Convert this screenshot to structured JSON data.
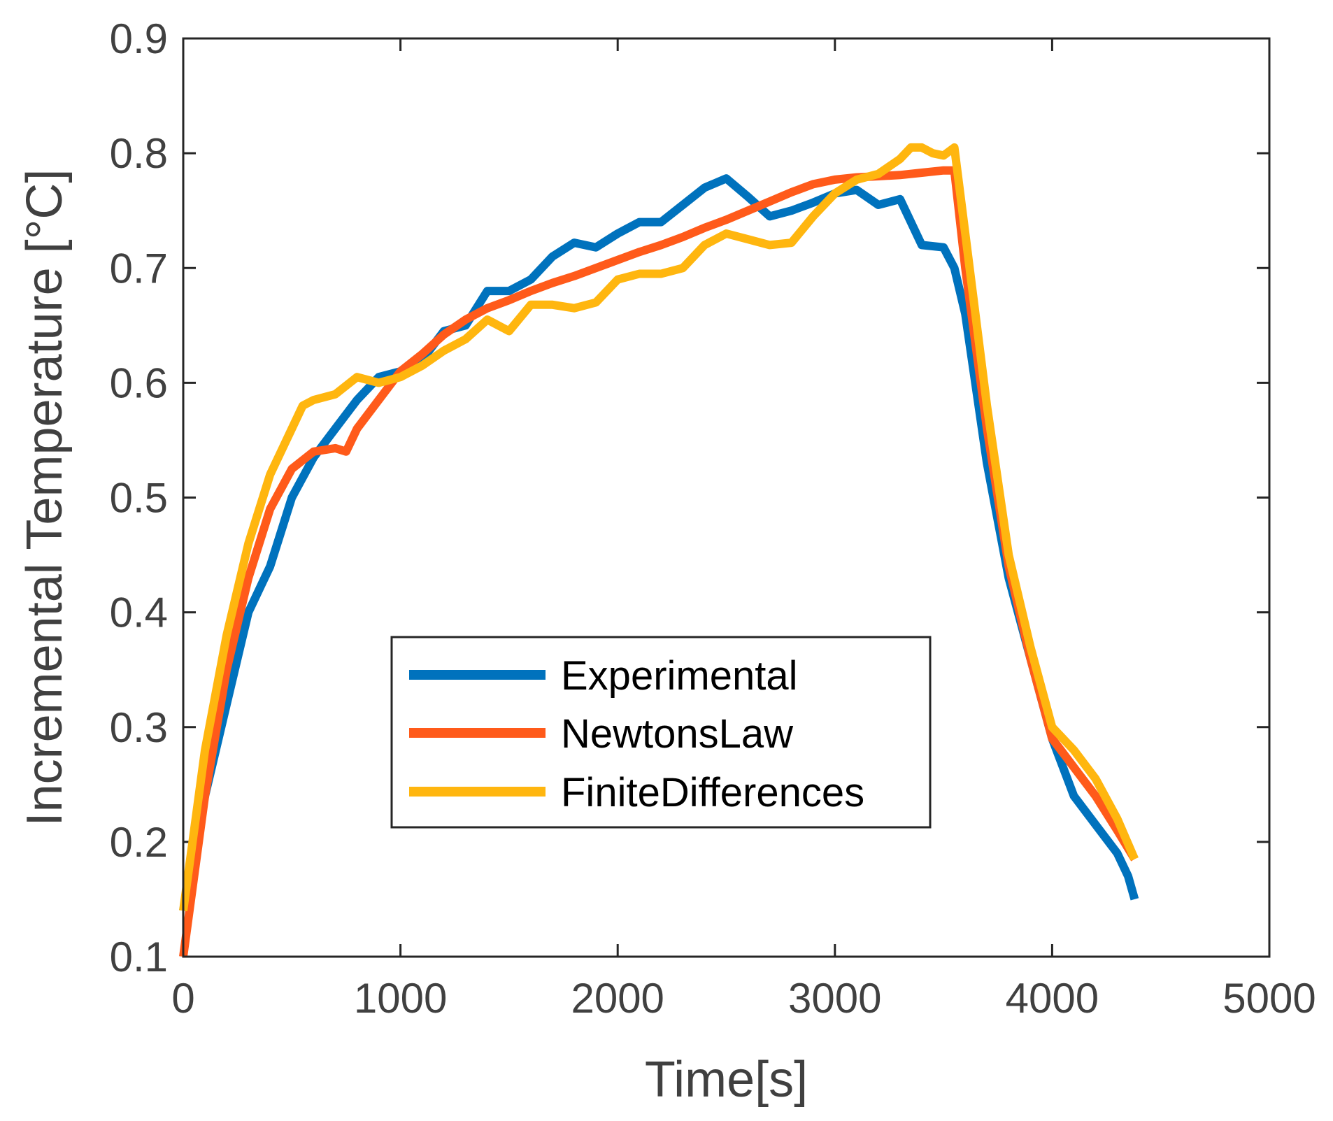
{
  "chart_data": {
    "type": "line",
    "title": "",
    "xlabel": "Time[s]",
    "ylabel": "Incremental Temperature [°C]",
    "xlim": [
      0,
      5000
    ],
    "ylim": [
      0.1,
      0.9
    ],
    "xticks": [
      0,
      1000,
      2000,
      3000,
      4000,
      5000
    ],
    "yticks": [
      0.1,
      0.2,
      0.3,
      0.4,
      0.5,
      0.6,
      0.7,
      0.8,
      0.9
    ],
    "xtick_labels": [
      "0",
      "1000",
      "2000",
      "3000",
      "4000",
      "5000"
    ],
    "ytick_labels": [
      "0.1",
      "0.2",
      "0.3",
      "0.4",
      "0.5",
      "0.6",
      "0.7",
      "0.8",
      "0.9"
    ],
    "grid": false,
    "legend_position": "center-bottom",
    "series": [
      {
        "name": "Experimental",
        "color": "#0072BD",
        "x": [
          0,
          100,
          200,
          300,
          400,
          500,
          600,
          700,
          800,
          900,
          1000,
          1100,
          1200,
          1300,
          1400,
          1500,
          1600,
          1700,
          1800,
          1900,
          2000,
          2100,
          2200,
          2300,
          2400,
          2500,
          2600,
          2700,
          2800,
          2900,
          3000,
          3100,
          3200,
          3300,
          3400,
          3500,
          3550,
          3600,
          3700,
          3800,
          3900,
          4000,
          4100,
          4200,
          4300,
          4350,
          4380
        ],
        "y": [
          0.14,
          0.24,
          0.32,
          0.4,
          0.44,
          0.5,
          0.535,
          0.56,
          0.585,
          0.605,
          0.61,
          0.62,
          0.645,
          0.65,
          0.68,
          0.68,
          0.69,
          0.71,
          0.722,
          0.718,
          0.73,
          0.74,
          0.74,
          0.755,
          0.77,
          0.778,
          0.762,
          0.745,
          0.75,
          0.757,
          0.765,
          0.768,
          0.755,
          0.76,
          0.72,
          0.718,
          0.7,
          0.66,
          0.53,
          0.43,
          0.36,
          0.29,
          0.24,
          0.215,
          0.19,
          0.17,
          0.15
        ]
      },
      {
        "name": "NewtonsLaw",
        "color": "#FF5A1A",
        "x": [
          0,
          100,
          200,
          300,
          400,
          500,
          600,
          700,
          750,
          800,
          900,
          1000,
          1100,
          1200,
          1300,
          1400,
          1500,
          1600,
          1700,
          1800,
          1900,
          2000,
          2100,
          2200,
          2300,
          2400,
          2500,
          2600,
          2700,
          2800,
          2900,
          3000,
          3100,
          3200,
          3300,
          3400,
          3500,
          3550,
          3600,
          3700,
          3800,
          3900,
          4000,
          4100,
          4200,
          4300,
          4380
        ],
        "y": [
          0.1,
          0.24,
          0.35,
          0.43,
          0.49,
          0.525,
          0.54,
          0.543,
          0.54,
          0.56,
          0.585,
          0.61,
          0.625,
          0.642,
          0.655,
          0.665,
          0.672,
          0.68,
          0.687,
          0.693,
          0.7,
          0.707,
          0.714,
          0.72,
          0.727,
          0.735,
          0.742,
          0.75,
          0.758,
          0.766,
          0.773,
          0.777,
          0.779,
          0.78,
          0.781,
          0.783,
          0.785,
          0.785,
          0.7,
          0.56,
          0.44,
          0.36,
          0.29,
          0.265,
          0.24,
          0.21,
          0.185
        ]
      },
      {
        "name": "FiniteDifferences",
        "color": "#FFB60F",
        "x": [
          0,
          100,
          200,
          300,
          400,
          500,
          550,
          600,
          700,
          800,
          900,
          1000,
          1100,
          1200,
          1300,
          1400,
          1500,
          1600,
          1700,
          1800,
          1900,
          2000,
          2100,
          2200,
          2300,
          2400,
          2500,
          2600,
          2700,
          2800,
          2900,
          3000,
          3100,
          3200,
          3300,
          3350,
          3400,
          3450,
          3500,
          3550,
          3600,
          3700,
          3800,
          3900,
          4000,
          4100,
          4200,
          4300,
          4380
        ],
        "y": [
          0.14,
          0.28,
          0.38,
          0.46,
          0.52,
          0.56,
          0.58,
          0.585,
          0.59,
          0.605,
          0.6,
          0.605,
          0.615,
          0.628,
          0.638,
          0.655,
          0.645,
          0.668,
          0.668,
          0.665,
          0.67,
          0.69,
          0.695,
          0.695,
          0.7,
          0.72,
          0.73,
          0.725,
          0.72,
          0.722,
          0.745,
          0.765,
          0.777,
          0.782,
          0.795,
          0.805,
          0.805,
          0.8,
          0.798,
          0.805,
          0.73,
          0.58,
          0.45,
          0.37,
          0.3,
          0.28,
          0.255,
          0.22,
          0.185
        ]
      }
    ]
  }
}
